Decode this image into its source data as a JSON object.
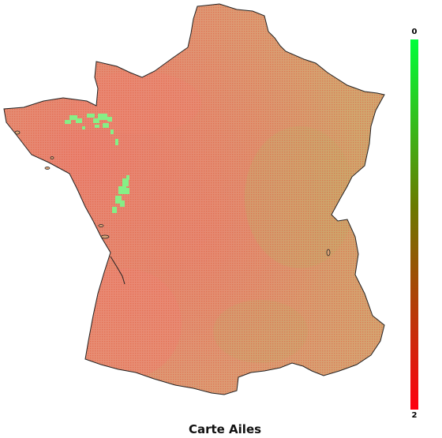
{
  "title": "Carte Ailes",
  "legend": {
    "max_label": "0",
    "min_label": "2",
    "color_top": "#00ff3a",
    "color_mid": "#6a7a00",
    "color_bottom": "#ff0010"
  },
  "colors": {
    "land_base": "#d8a277",
    "land_reddish": "#e78a72",
    "land_olive": "#c9a86d",
    "green_patch": "#8ef08a",
    "outline": "#222222",
    "grid_dot": "#e04a3a"
  }
}
